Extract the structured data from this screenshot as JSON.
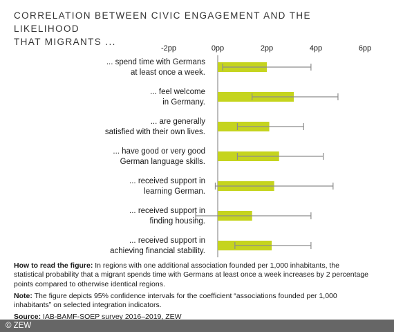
{
  "title": {
    "line1": "Correlation between civic engagement and the likelihood",
    "line2": "that migrants ..."
  },
  "chart_data": {
    "type": "bar",
    "orientation": "horizontal",
    "x_ticks": [
      "-2pp",
      "0pp",
      "2pp",
      "4pp",
      "6pp"
    ],
    "xlim": [
      -2,
      6
    ],
    "categories": [
      [
        "... spend time with Germans",
        "at least once a week."
      ],
      [
        "... feel welcome",
        "in Germany."
      ],
      [
        "... are generally",
        "satisfied with their own lives."
      ],
      [
        "... have good or very good",
        "German language skills."
      ],
      [
        "... received support in",
        "learning German."
      ],
      [
        "... received support in",
        "finding housing."
      ],
      [
        "... received support in",
        "achieving financial stability."
      ]
    ],
    "values": [
      2.0,
      3.1,
      2.1,
      2.5,
      2.3,
      1.4,
      2.2
    ],
    "ci_low": [
      0.2,
      1.4,
      0.8,
      0.8,
      -0.1,
      -0.9,
      0.7
    ],
    "ci_high": [
      3.8,
      4.9,
      3.5,
      4.3,
      4.7,
      3.8,
      3.8
    ],
    "colors": {
      "bar": "#c5d41e",
      "error": "#8c8c8c",
      "axis": "#a6a6a6"
    }
  },
  "notes": {
    "read_label": "How to read the figure:",
    "read_text": " In regions with one additional association founded per 1,000 inhabitants, the statistical probability that a migrant spends time with Germans at least once a week increases by 2 percentage points compared to otherwise identical regions.",
    "note_label": "Note:",
    "note_text": " The figure depicts 95% confidence intervals for the coefficient “associations founded per 1,000 inhabitants” on selected integration indicators.",
    "source_label": "Source:",
    "source_text": " IAB-BAMF-SOEP survey 2016–2019, ZEW"
  },
  "footer": {
    "copyright": "© ZEW"
  }
}
